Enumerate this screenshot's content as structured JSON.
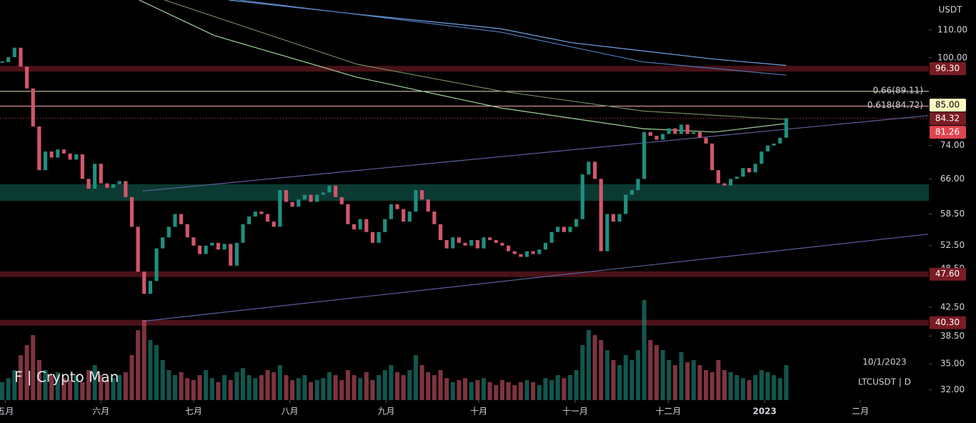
{
  "chart_data": {
    "type": "candlestick",
    "log_scale": true,
    "currency": "USDT",
    "watermark": "F | Crypto Man",
    "date": "10/1/2023",
    "symbol": "LTCUSDT | D",
    "up_color": "#1e8f80",
    "down_color": "#d2566b",
    "xlim": [
      -0.35,
      150.1
    ],
    "ylim": [
      30.9,
      121.9
    ],
    "xticks": [
      {
        "value": 0.5,
        "label": "五月"
      },
      {
        "value": 16,
        "label": "六月"
      },
      {
        "value": 31,
        "label": "七月"
      },
      {
        "value": 46.6,
        "label": "八月"
      },
      {
        "value": 62.2,
        "label": "九月"
      },
      {
        "value": 77.2,
        "label": "十月"
      },
      {
        "value": 92.8,
        "label": "十一月"
      },
      {
        "value": 107.9,
        "label": "十二月"
      },
      {
        "value": 123.5,
        "label": "2023"
      },
      {
        "value": 139,
        "label": "二月"
      }
    ],
    "yticks": [
      {
        "value": 110,
        "label": "110.00"
      },
      {
        "value": 100,
        "label": "100.00"
      },
      {
        "value": 74,
        "label": "74.00"
      },
      {
        "value": 66,
        "label": "66.00"
      },
      {
        "value": 58.5,
        "label": "58.50"
      },
      {
        "value": 52.5,
        "label": "52.50"
      },
      {
        "value": 48.5,
        "label": "48.50"
      },
      {
        "value": 42.5,
        "label": "42.50"
      },
      {
        "value": 38.5,
        "label": "38.50"
      },
      {
        "value": 35,
        "label": "35.00"
      },
      {
        "value": 32,
        "label": "32.00"
      }
    ],
    "close": [
      98.5,
      100.2,
      103.5,
      97.0,
      90.0,
      79.0,
      68.0,
      72.5,
      71.0,
      73.0,
      72.0,
      70.5,
      71.8,
      66.0,
      63.8,
      69.5,
      65.0,
      64.0,
      64.8,
      65.5,
      62.0,
      56.0,
      48.0,
      44.5,
      46.5,
      52.0,
      54.0,
      56.0,
      58.5,
      56.5,
      54.0,
      52.5,
      51.0,
      52.5,
      53.0,
      51.8,
      52.8,
      49.0,
      53.0,
      56.5,
      58.0,
      59.0,
      58.5,
      57.0,
      56.0,
      63.5,
      61.0,
      60.0,
      61.5,
      62.5,
      61.0,
      62.5,
      63.0,
      64.5,
      62.0,
      60.5,
      56.5,
      55.5,
      57.5,
      55.0,
      53.0,
      55.0,
      57.5,
      60.5,
      59.5,
      57.0,
      59.0,
      63.5,
      61.5,
      59.0,
      56.5,
      53.5,
      52.0,
      54.0,
      53.0,
      52.5,
      53.5,
      52.0,
      54.0,
      53.5,
      53.0,
      52.5,
      51.5,
      51.0,
      50.5,
      51.5,
      51.0,
      51.8,
      53.0,
      55.0,
      56.0,
      55.0,
      56.0,
      57.5,
      67.0,
      70.0,
      66.0,
      51.5,
      58.5,
      57.0,
      58.5,
      62.5,
      63.5,
      66.0,
      77.5,
      76.5,
      75.5,
      77.0,
      78.5,
      77.0,
      79.5,
      77.0,
      77.5,
      76.0,
      74.5,
      68.0,
      65.0,
      64.5,
      66.0,
      66.5,
      68.5,
      67.5,
      69.5,
      72.5,
      74.0,
      74.5,
      76.0,
      81.26
    ],
    "volume": [
      18,
      22,
      30,
      45,
      55,
      65,
      40,
      30,
      25,
      28,
      22,
      20,
      25,
      18,
      30,
      35,
      25,
      20,
      22,
      25,
      28,
      45,
      70,
      80,
      60,
      55,
      40,
      30,
      25,
      28,
      22,
      20,
      25,
      30,
      22,
      18,
      25,
      20,
      28,
      32,
      25,
      22,
      25,
      30,
      28,
      35,
      25,
      20,
      22,
      25,
      18,
      20,
      22,
      28,
      25,
      20,
      30,
      25,
      22,
      28,
      20,
      25,
      30,
      35,
      28,
      25,
      30,
      45,
      35,
      28,
      25,
      30,
      22,
      18,
      20,
      22,
      18,
      20,
      22,
      18,
      15,
      20,
      18,
      15,
      18,
      20,
      18,
      15,
      22,
      20,
      25,
      22,
      25,
      30,
      55,
      70,
      65,
      60,
      50,
      40,
      35,
      45,
      40,
      50,
      100,
      60,
      55,
      50,
      40,
      35,
      48,
      38,
      40,
      35,
      30,
      28,
      40,
      30,
      28,
      25,
      22,
      20,
      25,
      30,
      28,
      25,
      22,
      35
    ],
    "zone": {
      "low": 61.2,
      "high": 64.8,
      "color": "#0b3a32"
    },
    "moving_averages": [
      {
        "color": "#9fd49a",
        "x": [
          22.2,
          34.4,
          57.5,
          80.7,
          103.8,
          115.4,
          127
        ],
        "values": [
          121.9,
          107.9,
          93.5,
          84.2,
          78.4,
          77.5,
          79.8
        ]
      },
      {
        "color": "#6f8a5a",
        "x": [
          26.3,
          57.5,
          80.7,
          103.8,
          127
        ],
        "values": [
          121.9,
          97.8,
          89.2,
          83.3,
          80.9
        ]
      },
      {
        "color": "#6fa3e8",
        "x": [
          36.7,
          57.5,
          80.7,
          92.2,
          115.4,
          127
        ],
        "values": [
          121.9,
          116.1,
          110.5,
          105.3,
          99.5,
          97.4
        ]
      },
      {
        "color": "#4a74b0",
        "x": [
          38.5,
          80.7,
          103.8,
          127
        ],
        "values": [
          121.9,
          109.2,
          98.6,
          94.2
        ]
      }
    ],
    "trendlines": [
      {
        "color": "#5a5f9a",
        "x": [
          22.8,
          150
        ],
        "values": [
          63.3,
          82.0
        ]
      },
      {
        "color": "#5a5f9a",
        "x": [
          22.8,
          150
        ],
        "values": [
          40.5,
          54.6
        ]
      }
    ],
    "bands": [
      {
        "value": 96.3,
        "color": "#4a1218"
      },
      {
        "value": 47.6,
        "color": "#4a1218"
      },
      {
        "value": 40.3,
        "color": "#4a1218"
      }
    ],
    "fib_levels": [
      {
        "value": 89.11,
        "label": "0.66(89.11)",
        "color": "#e6e3c2"
      },
      {
        "value": 84.72,
        "label": "0.618(84.72)",
        "color": "#f1a3ab"
      }
    ],
    "price_tags": [
      {
        "value": 96.3,
        "label": "96.30",
        "bg": "#7a1c24",
        "fg": "#ffffff"
      },
      {
        "value": 85,
        "label": "85.00",
        "bg": "#fff7c2",
        "fg": "#000000"
      },
      {
        "value": 84.32,
        "label": "84.32",
        "bg": "#7a1c24",
        "fg": "#ffffff"
      },
      {
        "value": 81.26,
        "label": "81.26",
        "bg": "#e0454f",
        "fg": "#ffffff"
      },
      {
        "value": 47.6,
        "label": "47.60",
        "bg": "#7a1c24",
        "fg": "#ffffff"
      },
      {
        "value": 40.3,
        "label": "40.30",
        "bg": "#7a1c24",
        "fg": "#ffffff"
      }
    ]
  }
}
